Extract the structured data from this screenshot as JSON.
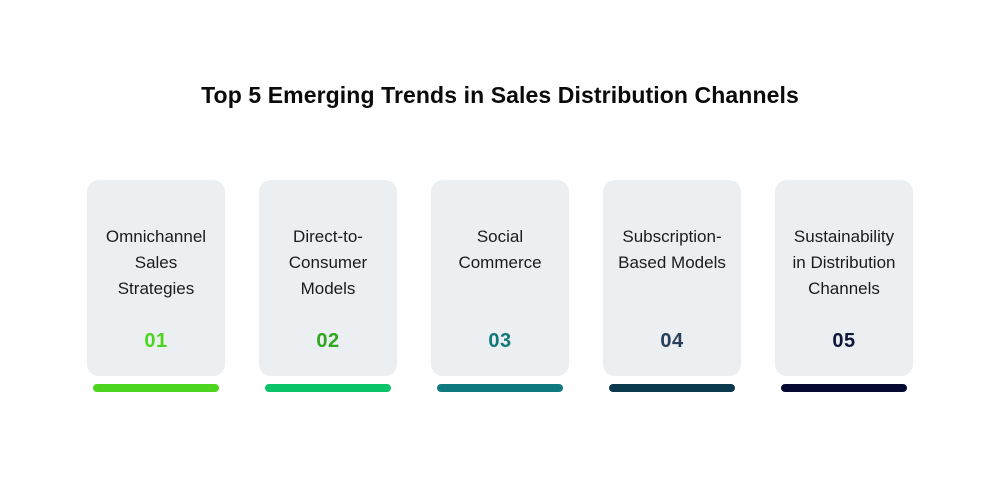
{
  "title": "Top 5 Emerging Trends in Sales Distribution Channels",
  "trends": [
    {
      "label": "Omnichannel\nSales\nStrategies",
      "number": "01",
      "number_color": "#4cd41e",
      "bar_color": "#4cd41e"
    },
    {
      "label": "Direct-to-\nConsumer\nModels",
      "number": "02",
      "number_color": "#2ea81e",
      "bar_color": "#0bc46a"
    },
    {
      "label": "Social\nCommerce",
      "number": "03",
      "number_color": "#107878",
      "bar_color": "#0e7a80"
    },
    {
      "label": "Subscription-\nBased Models",
      "number": "04",
      "number_color": "#2a3d57",
      "bar_color": "#0b3a4e"
    },
    {
      "label": "Sustainability\nin Distribution\nChannels",
      "number": "05",
      "number_color": "#0d1736",
      "bar_color": "#060a33"
    }
  ]
}
